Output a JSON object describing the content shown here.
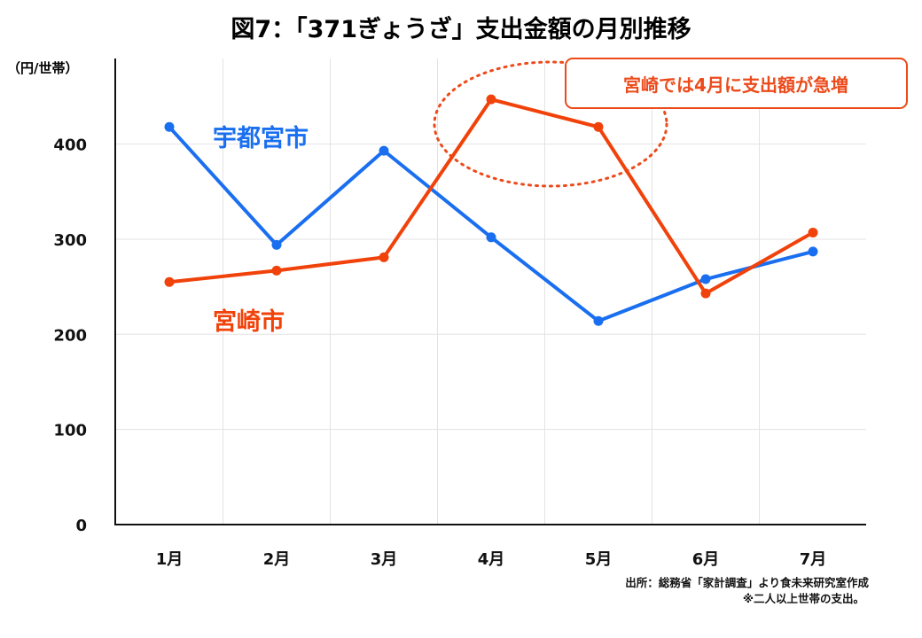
{
  "chart_data": {
    "type": "line",
    "title": "図7：「371ぎょうざ」支出金額の月別推移",
    "y_unit": "（円/世帯）",
    "categories": [
      "1月",
      "2月",
      "3月",
      "4月",
      "5月",
      "6月",
      "7月"
    ],
    "ylim": [
      0,
      490
    ],
    "yticks": [
      0,
      100,
      200,
      300,
      400
    ],
    "grid": true,
    "series": [
      {
        "name": "宇都宮市",
        "color": "#1a6ff0",
        "values": [
          418,
          294,
          393,
          302,
          214,
          258,
          287
        ]
      },
      {
        "name": "宮崎市",
        "color": "#f0420a",
        "values": [
          255,
          267,
          281,
          447,
          418,
          243,
          307
        ]
      }
    ],
    "annotation": {
      "text": "宮崎では4月に支出額が急増",
      "color": "#ec4a1a"
    },
    "source": "出所：総務省「家計調査」より食未来研究室作成",
    "note": "※二人以上世帯の支出。"
  }
}
